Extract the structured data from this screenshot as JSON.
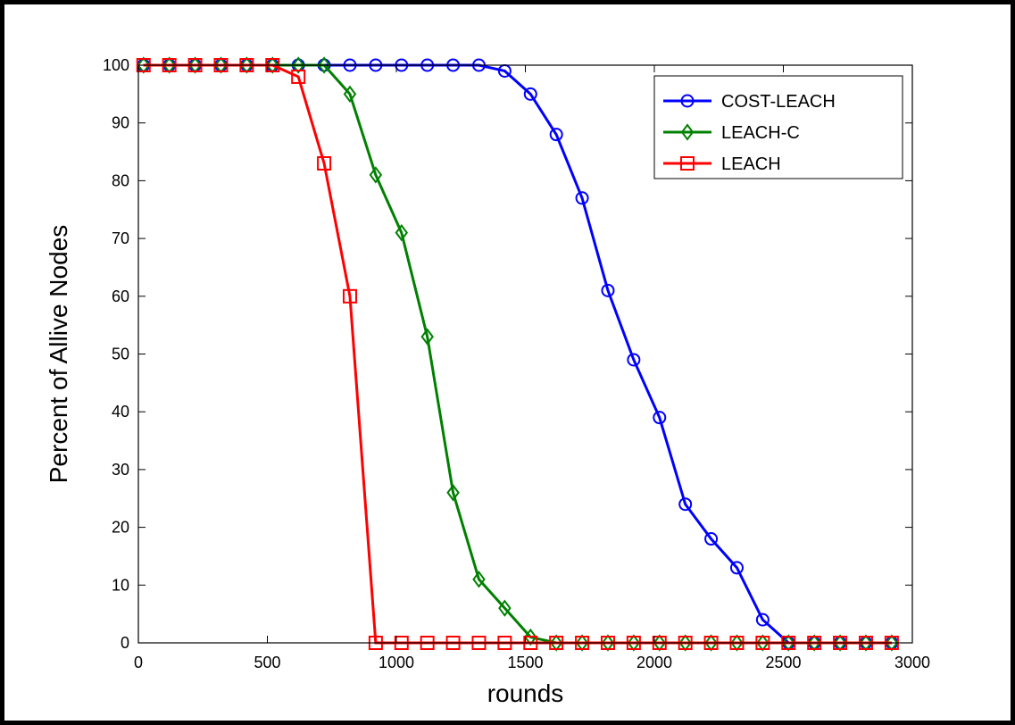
{
  "chart_data": {
    "type": "line",
    "title": "",
    "xlabel": "rounds",
    "ylabel": "Percent of Allive Nodes",
    "xlim": [
      0,
      3000
    ],
    "ylim": [
      0,
      100
    ],
    "xticks": [
      0,
      500,
      1000,
      1500,
      2000,
      2500,
      3000
    ],
    "yticks": [
      0,
      10,
      20,
      30,
      40,
      50,
      60,
      70,
      80,
      90,
      100
    ],
    "grid": false,
    "legend_position": "top-right",
    "series": [
      {
        "name": "COST-LEACH",
        "color": "#0000ff",
        "marker": "circle",
        "x": [
          20,
          120,
          220,
          320,
          420,
          520,
          620,
          720,
          820,
          920,
          1020,
          1120,
          1220,
          1320,
          1420,
          1520,
          1620,
          1720,
          1820,
          1920,
          2020,
          2120,
          2220,
          2320,
          2420,
          2520,
          2620,
          2720,
          2820,
          2920
        ],
        "y": [
          100,
          100,
          100,
          100,
          100,
          100,
          100,
          100,
          100,
          100,
          100,
          100,
          100,
          100,
          99,
          95,
          88,
          77,
          61,
          49,
          39,
          24,
          18,
          13,
          4,
          0,
          0,
          0,
          0,
          0
        ]
      },
      {
        "name": "LEACH-C",
        "color": "#008000",
        "marker": "diamond",
        "x": [
          20,
          120,
          220,
          320,
          420,
          520,
          620,
          720,
          820,
          920,
          1020,
          1120,
          1220,
          1320,
          1420,
          1520,
          1620,
          1720,
          1820,
          1920,
          2020,
          2120,
          2220,
          2320,
          2420,
          2520,
          2620,
          2720,
          2820,
          2920
        ],
        "y": [
          100,
          100,
          100,
          100,
          100,
          100,
          100,
          100,
          95,
          81,
          71,
          53,
          26,
          11,
          6,
          1,
          0,
          0,
          0,
          0,
          0,
          0,
          0,
          0,
          0,
          0,
          0,
          0,
          0,
          0
        ]
      },
      {
        "name": "LEACH",
        "color": "#ff0000",
        "marker": "square",
        "x": [
          20,
          120,
          220,
          320,
          420,
          520,
          620,
          720,
          820,
          920,
          1020,
          1120,
          1220,
          1320,
          1420,
          1520,
          1620,
          1720,
          1820,
          1920,
          2020,
          2120,
          2220,
          2320,
          2420,
          2520,
          2620,
          2720,
          2820,
          2920
        ],
        "y": [
          100,
          100,
          100,
          100,
          100,
          100,
          98,
          83,
          60,
          0,
          0,
          0,
          0,
          0,
          0,
          0,
          0,
          0,
          0,
          0,
          0,
          0,
          0,
          0,
          0,
          0,
          0,
          0,
          0,
          0
        ]
      }
    ]
  }
}
